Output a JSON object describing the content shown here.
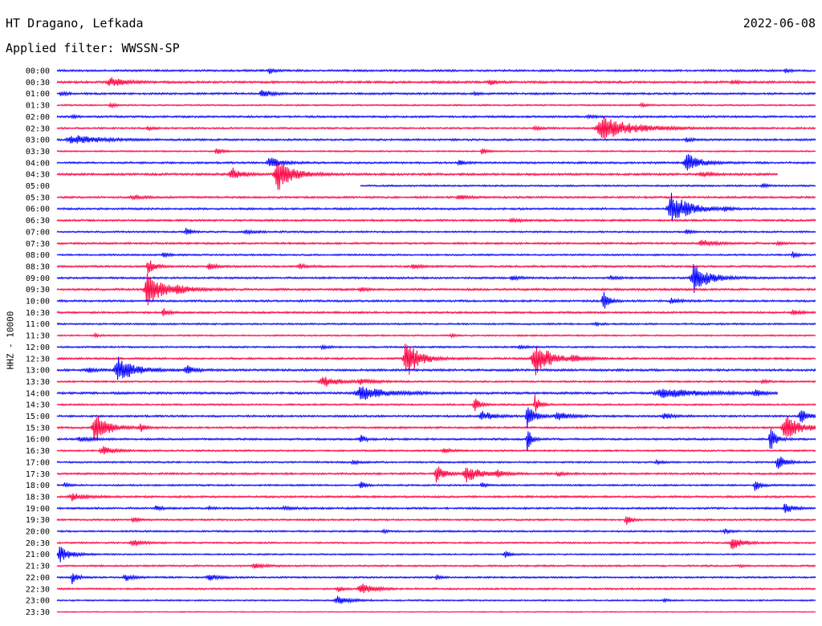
{
  "header": {
    "station": "HT Dragano, Lefkada",
    "date": "2022-06-08",
    "filter": "Applied filter: WWSSN-SP"
  },
  "chart_data": {
    "type": "line",
    "ylabel": "HHZ - 10000",
    "colors": [
      "#0000ff",
      "#ff0040"
    ],
    "rows": [
      {
        "label": "00:00",
        "start": 0,
        "end": 1,
        "base": 0.8,
        "events": [
          [
            0.28,
            4,
            0.004
          ],
          [
            0.96,
            2.5,
            0.004
          ]
        ]
      },
      {
        "label": "00:30",
        "start": 0,
        "end": 1,
        "base": 0.9,
        "events": [
          [
            0.07,
            6,
            0.012
          ],
          [
            0.57,
            4,
            0.004
          ],
          [
            0.89,
            2,
            0.005
          ]
        ]
      },
      {
        "label": "01:00",
        "start": 0,
        "end": 1,
        "base": 0.8,
        "events": [
          [
            0.27,
            5,
            0.008
          ],
          [
            0.005,
            3,
            0.005
          ],
          [
            0.55,
            2,
            0.004
          ]
        ]
      },
      {
        "label": "01:30",
        "start": 0,
        "end": 1,
        "base": 0.6,
        "events": [
          [
            0.07,
            3,
            0.004
          ],
          [
            0.77,
            2.5,
            0.004
          ]
        ]
      },
      {
        "label": "02:00",
        "start": 0,
        "end": 1,
        "base": 0.8,
        "events": [
          [
            0.02,
            2,
            0.004
          ],
          [
            0.7,
            2,
            0.006
          ]
        ]
      },
      {
        "label": "02:30",
        "start": 0,
        "end": 1,
        "base": 0.7,
        "events": [
          [
            0.72,
            14,
            0.025
          ],
          [
            0.12,
            2.5,
            0.004
          ],
          [
            0.63,
            2,
            0.006
          ]
        ]
      },
      {
        "label": "03:00",
        "start": 0,
        "end": 1,
        "base": 0.8,
        "events": [
          [
            0.02,
            6,
            0.02
          ],
          [
            0.83,
            3,
            0.005
          ]
        ]
      },
      {
        "label": "03:30",
        "start": 0,
        "end": 1,
        "base": 0.6,
        "events": [
          [
            0.21,
            5,
            0.004
          ],
          [
            0.56,
            4,
            0.004
          ]
        ]
      },
      {
        "label": "04:00",
        "start": 0,
        "end": 1,
        "base": 0.8,
        "events": [
          [
            0.28,
            7,
            0.01
          ],
          [
            0.53,
            4,
            0.004
          ],
          [
            0.83,
            12,
            0.01
          ]
        ]
      },
      {
        "label": "04:30",
        "start": 0,
        "end": 0.95,
        "base": 0.9,
        "events": [
          [
            0.29,
            22,
            0.012
          ],
          [
            0.23,
            9,
            0.007
          ],
          [
            0.85,
            3,
            0.008
          ]
        ]
      },
      {
        "label": "05:00",
        "start": 0.4,
        "end": 1,
        "base": 0.7,
        "events": [
          [
            0.93,
            3,
            0.004
          ]
        ]
      },
      {
        "label": "05:30",
        "start": 0,
        "end": 1,
        "base": 0.8,
        "events": [
          [
            0.1,
            2,
            0.01
          ],
          [
            0.53,
            3,
            0.008
          ]
        ]
      },
      {
        "label": "06:00",
        "start": 0,
        "end": 1,
        "base": 0.8,
        "events": [
          [
            0.81,
            20,
            0.014
          ],
          [
            0.88,
            3,
            0.004
          ]
        ]
      },
      {
        "label": "06:30",
        "start": 0,
        "end": 1,
        "base": 0.8,
        "events": [
          [
            0.6,
            2,
            0.01
          ]
        ]
      },
      {
        "label": "07:00",
        "start": 0,
        "end": 1,
        "base": 0.7,
        "events": [
          [
            0.17,
            5,
            0.004
          ],
          [
            0.25,
            2,
            0.01
          ],
          [
            0.83,
            3,
            0.004
          ]
        ]
      },
      {
        "label": "07:30",
        "start": 0,
        "end": 1,
        "base": 0.8,
        "events": [
          [
            0.85,
            4,
            0.01
          ],
          [
            0.95,
            2,
            0.005
          ]
        ]
      },
      {
        "label": "08:00",
        "start": 0,
        "end": 1,
        "base": 0.7,
        "events": [
          [
            0.14,
            4,
            0.004
          ],
          [
            0.97,
            4,
            0.004
          ]
        ]
      },
      {
        "label": "08:30",
        "start": 0,
        "end": 1,
        "base": 0.8,
        "events": [
          [
            0.12,
            10,
            0.005
          ],
          [
            0.2,
            4,
            0.006
          ],
          [
            0.32,
            3,
            0.006
          ],
          [
            0.47,
            3,
            0.006
          ]
        ]
      },
      {
        "label": "09:00",
        "start": 0,
        "end": 1,
        "base": 0.8,
        "events": [
          [
            0.84,
            18,
            0.012
          ],
          [
            0.6,
            2.5,
            0.006
          ],
          [
            0.73,
            2,
            0.006
          ]
        ]
      },
      {
        "label": "09:30",
        "start": 0,
        "end": 1,
        "base": 0.9,
        "events": [
          [
            0.12,
            22,
            0.012
          ],
          [
            0.16,
            4,
            0.01
          ],
          [
            0.4,
            3,
            0.004
          ]
        ]
      },
      {
        "label": "10:00",
        "start": 0,
        "end": 1,
        "base": 0.8,
        "events": [
          [
            0.72,
            14,
            0.004
          ],
          [
            0.81,
            4,
            0.006
          ]
        ]
      },
      {
        "label": "10:30",
        "start": 0,
        "end": 1,
        "base": 0.8,
        "events": [
          [
            0.14,
            6,
            0.004
          ],
          [
            0.97,
            3,
            0.006
          ]
        ]
      },
      {
        "label": "11:00",
        "start": 0,
        "end": 1,
        "base": 0.7,
        "events": [
          [
            0.71,
            2,
            0.004
          ]
        ]
      },
      {
        "label": "11:30",
        "start": 0,
        "end": 1,
        "base": 0.6,
        "events": [
          [
            0.05,
            2,
            0.004
          ],
          [
            0.52,
            2,
            0.004
          ]
        ]
      },
      {
        "label": "12:00",
        "start": 0,
        "end": 1,
        "base": 0.7,
        "events": [
          [
            0.35,
            2,
            0.006
          ],
          [
            0.61,
            2,
            0.006
          ]
        ]
      },
      {
        "label": "12:30",
        "start": 0,
        "end": 1,
        "base": 0.8,
        "events": [
          [
            0.46,
            26,
            0.01
          ],
          [
            0.63,
            22,
            0.012
          ],
          [
            0.68,
            3,
            0.01
          ]
        ]
      },
      {
        "label": "13:00",
        "start": 0,
        "end": 1,
        "base": 0.9,
        "events": [
          [
            0.08,
            18,
            0.012
          ],
          [
            0.17,
            6,
            0.006
          ],
          [
            0.04,
            4,
            0.006
          ]
        ]
      },
      {
        "label": "13:30",
        "start": 0,
        "end": 1,
        "base": 0.7,
        "events": [
          [
            0.35,
            7,
            0.012
          ],
          [
            0.4,
            3,
            0.012
          ],
          [
            0.93,
            2,
            0.006
          ]
        ]
      },
      {
        "label": "14:00",
        "start": 0,
        "end": 0.95,
        "base": 0.9,
        "events": [
          [
            0.4,
            9,
            0.02
          ],
          [
            0.8,
            6,
            0.03
          ],
          [
            0.92,
            4,
            0.006
          ]
        ]
      },
      {
        "label": "14:30",
        "start": 0,
        "end": 1,
        "base": 0.7,
        "events": [
          [
            0.55,
            10,
            0.004
          ],
          [
            0.63,
            12,
            0.004
          ]
        ]
      },
      {
        "label": "15:00",
        "start": 0,
        "end": 1,
        "base": 0.8,
        "events": [
          [
            0.62,
            14,
            0.006
          ],
          [
            0.56,
            6,
            0.01
          ],
          [
            0.66,
            5,
            0.01
          ],
          [
            0.8,
            4,
            0.006
          ],
          [
            0.98,
            10,
            0.006
          ]
        ]
      },
      {
        "label": "15:30",
        "start": 0,
        "end": 1,
        "base": 0.8,
        "events": [
          [
            0.05,
            20,
            0.01
          ],
          [
            0.11,
            5,
            0.004
          ],
          [
            0.96,
            16,
            0.012
          ]
        ]
      },
      {
        "label": "16:00",
        "start": 0,
        "end": 1,
        "base": 0.8,
        "events": [
          [
            0.4,
            6,
            0.004
          ],
          [
            0.62,
            18,
            0.003
          ],
          [
            0.94,
            18,
            0.004
          ],
          [
            0.03,
            3,
            0.01
          ]
        ]
      },
      {
        "label": "16:30",
        "start": 0,
        "end": 1,
        "base": 0.7,
        "events": [
          [
            0.06,
            5,
            0.01
          ],
          [
            0.51,
            3,
            0.006
          ]
        ]
      },
      {
        "label": "17:00",
        "start": 0,
        "end": 1,
        "base": 0.7,
        "events": [
          [
            0.39,
            3,
            0.004
          ],
          [
            0.79,
            2.5,
            0.004
          ],
          [
            0.95,
            10,
            0.006
          ]
        ]
      },
      {
        "label": "17:30",
        "start": 0,
        "end": 1,
        "base": 0.8,
        "events": [
          [
            0.5,
            12,
            0.006
          ],
          [
            0.54,
            10,
            0.012
          ],
          [
            0.58,
            4,
            0.006
          ],
          [
            0.66,
            3,
            0.006
          ]
        ]
      },
      {
        "label": "18:00",
        "start": 0,
        "end": 1,
        "base": 0.7,
        "events": [
          [
            0.4,
            5,
            0.004
          ],
          [
            0.01,
            3,
            0.004
          ],
          [
            0.56,
            3,
            0.004
          ],
          [
            0.92,
            8,
            0.004
          ]
        ]
      },
      {
        "label": "18:30",
        "start": 0,
        "end": 1,
        "base": 0.8,
        "events": [
          [
            0.02,
            5,
            0.01
          ]
        ]
      },
      {
        "label": "19:00",
        "start": 0,
        "end": 1,
        "base": 0.8,
        "events": [
          [
            0.13,
            3,
            0.004
          ],
          [
            0.2,
            2,
            0.004
          ],
          [
            0.3,
            2,
            0.008
          ],
          [
            0.96,
            7,
            0.006
          ]
        ]
      },
      {
        "label": "19:30",
        "start": 0,
        "end": 1,
        "base": 0.7,
        "events": [
          [
            0.1,
            4,
            0.004
          ],
          [
            0.75,
            8,
            0.004
          ]
        ]
      },
      {
        "label": "20:00",
        "start": 0,
        "end": 1,
        "base": 0.7,
        "events": [
          [
            0.43,
            2,
            0.004
          ],
          [
            0.88,
            3,
            0.004
          ]
        ]
      },
      {
        "label": "20:30",
        "start": 0,
        "end": 1,
        "base": 0.7,
        "events": [
          [
            0.1,
            4,
            0.008
          ],
          [
            0.89,
            8,
            0.008
          ]
        ]
      },
      {
        "label": "21:00",
        "start": 0,
        "end": 1,
        "base": 0.6,
        "events": [
          [
            0.004,
            10,
            0.008
          ],
          [
            0.59,
            5,
            0.004
          ]
        ]
      },
      {
        "label": "21:30",
        "start": 0,
        "end": 1,
        "base": 0.7,
        "events": [
          [
            0.26,
            3,
            0.008
          ],
          [
            0.9,
            2,
            0.004
          ]
        ]
      },
      {
        "label": "22:00",
        "start": 0,
        "end": 1,
        "base": 0.7,
        "events": [
          [
            0.02,
            8,
            0.004
          ],
          [
            0.09,
            4,
            0.008
          ],
          [
            0.2,
            4,
            0.008
          ],
          [
            0.5,
            4,
            0.003
          ]
        ]
      },
      {
        "label": "22:30",
        "start": 0,
        "end": 1,
        "base": 0.7,
        "events": [
          [
            0.4,
            7,
            0.01
          ],
          [
            0.37,
            4,
            0.004
          ]
        ]
      },
      {
        "label": "23:00",
        "start": 0,
        "end": 1,
        "base": 0.6,
        "events": [
          [
            0.37,
            5,
            0.01
          ],
          [
            0.8,
            2,
            0.004
          ]
        ]
      },
      {
        "label": "23:30",
        "start": 0,
        "end": 1,
        "base": 0.4,
        "events": []
      }
    ]
  }
}
